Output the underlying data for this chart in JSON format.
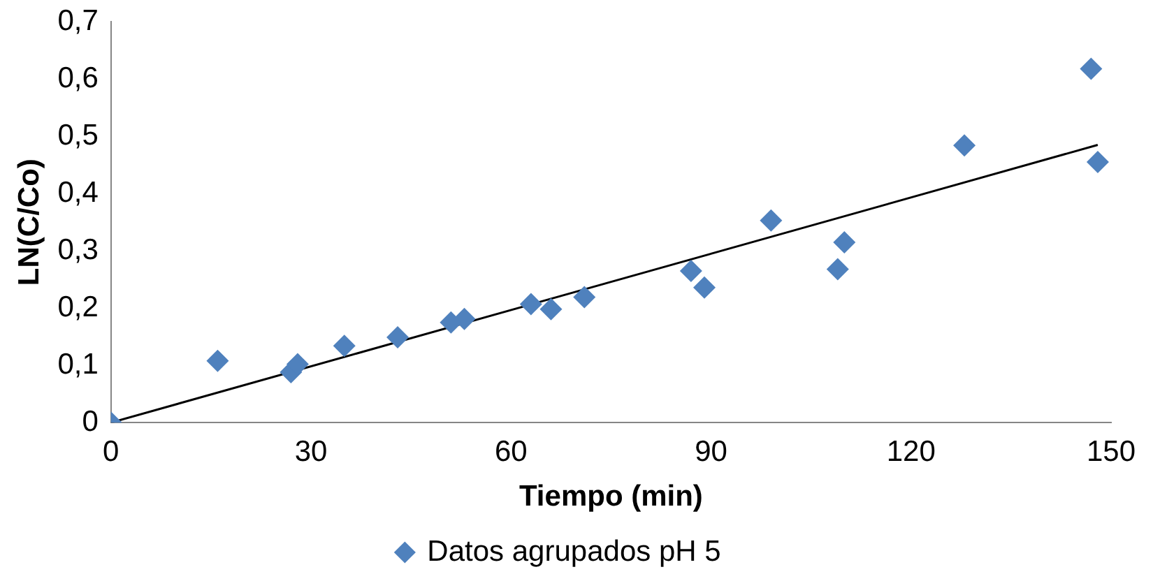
{
  "chart_data": {
    "type": "scatter",
    "xlabel": "Tiempo (min)",
    "ylabel": "LN(C/Co)",
    "xlim": [
      0,
      150
    ],
    "xticks": [
      0,
      30,
      60,
      90,
      120,
      150
    ],
    "ylim": [
      0,
      0.7
    ],
    "yticks": [
      0,
      {
        "value": 0.1,
        "label": "0,1"
      },
      {
        "value": 0.2,
        "label": "0,2"
      },
      {
        "value": 0.3,
        "label": "0,3"
      },
      {
        "value": 0.4,
        "label": "0,4"
      },
      {
        "value": 0.5,
        "label": "0,5"
      },
      {
        "value": 0.6,
        "label": "0,6"
      },
      {
        "value": 0.7,
        "label": "0,7"
      }
    ],
    "legend": "bottom",
    "marker": "diamond",
    "series": [
      {
        "name": "Datos agrupados pH 5",
        "color": "#4f81bd",
        "x": [
          0,
          16,
          27,
          28,
          35,
          43,
          51,
          53,
          63,
          66,
          71,
          87,
          89,
          99,
          109,
          110,
          128,
          147,
          148
        ],
        "values": [
          0,
          0.108,
          0.088,
          0.102,
          0.134,
          0.149,
          0.175,
          0.181,
          0.207,
          0.198,
          0.219,
          0.265,
          0.236,
          0.353,
          0.268,
          0.315,
          0.484,
          0.618,
          0.455
        ]
      },
      {
        "type": "line",
        "color": "#000000",
        "x": [
          0,
          148
        ],
        "values": [
          0,
          0.485
        ],
        "marker": "none",
        "line_style": "solid"
      }
    ]
  }
}
